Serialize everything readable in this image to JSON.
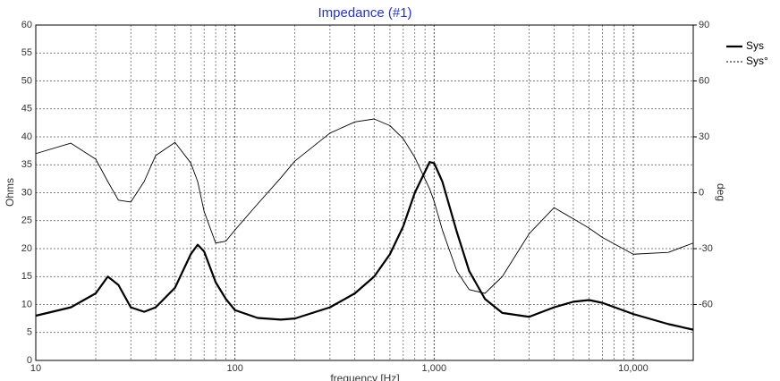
{
  "chart_data": {
    "type": "line",
    "title": "Impedance (#1)",
    "x_label": "frequency [Hz]",
    "y_label": "Ohms",
    "y2_label": "deg",
    "x_log": true,
    "grid": true,
    "legend": "top-right",
    "x": [
      10,
      15,
      20,
      23,
      26,
      30,
      35,
      40,
      50,
      60,
      65,
      70,
      80,
      90,
      100,
      130,
      170,
      200,
      300,
      400,
      500,
      600,
      700,
      800,
      950,
      1000,
      1100,
      1300,
      1500,
      1800,
      2200,
      3000,
      4000,
      5000,
      6000,
      7000,
      10000,
      15000,
      20000
    ],
    "series": [
      {
        "name": "Sys",
        "color": "#000000",
        "style": "solid",
        "values": [
          8,
          9.5,
          12,
          15,
          13.5,
          9.5,
          8.7,
          9.5,
          13,
          19,
          20.7,
          19.5,
          14,
          11,
          9,
          7.6,
          7.3,
          7.5,
          9.5,
          12,
          15,
          19,
          24,
          30,
          35.5,
          35.3,
          32,
          23,
          16,
          11,
          8.5,
          7.8,
          9.5,
          10.5,
          10.8,
          10.3,
          8.3,
          6.5,
          5.5
        ]
      },
      {
        "name": "Sys°",
        "color": "#000000",
        "style": "dashed",
        "axis": "y2",
        "values": [
          21,
          26.6,
          18,
          6,
          -4,
          -5,
          6,
          20,
          27,
          16,
          6,
          -10,
          -27,
          -26,
          -20,
          -6,
          8,
          17,
          32,
          38,
          39.6,
          36,
          29,
          19,
          2,
          -4.6,
          -20,
          -42,
          -52,
          -54,
          -45,
          -22,
          -8,
          -14,
          -19,
          -24,
          -33,
          -32,
          -27
        ]
      }
    ],
    "xlim": [
      10,
      20000
    ],
    "xticks": [
      10,
      100,
      {
        "value": 1000,
        "label": "1,000"
      },
      {
        "value": 10000,
        "label": "10,000"
      }
    ],
    "ylim": [
      0,
      60
    ],
    "yticks": [
      0,
      5,
      10,
      15,
      20,
      25,
      30,
      35,
      40,
      45,
      50,
      55,
      60
    ],
    "y2lim": [
      -90,
      90
    ],
    "y2ticks": [
      -60,
      -30,
      0,
      30,
      60,
      90
    ]
  }
}
